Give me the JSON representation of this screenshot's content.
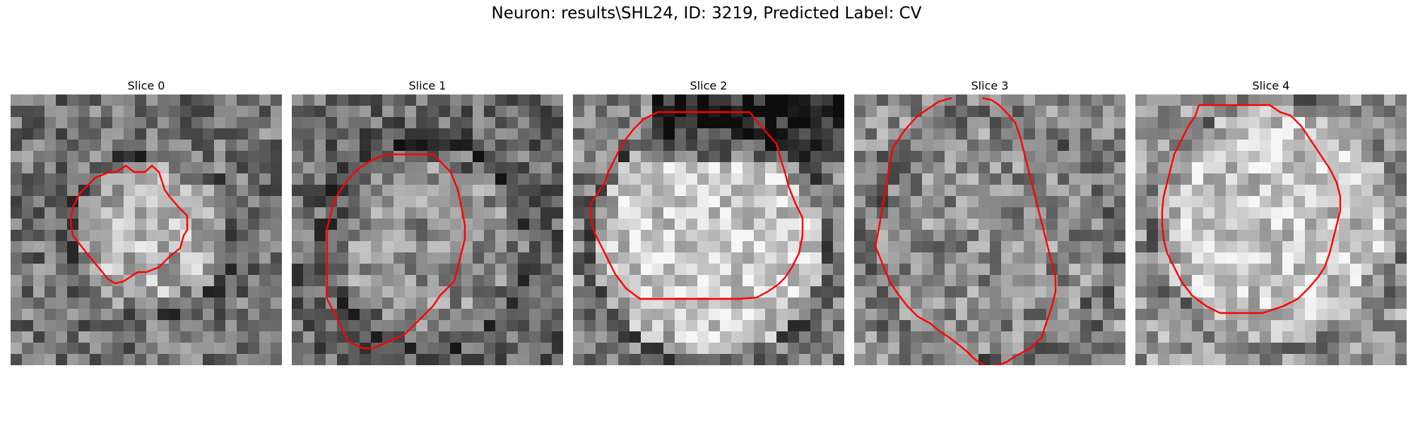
{
  "figure": {
    "title": "Neuron: results\\SHL24, ID: 3219, Predicted Label: CV"
  },
  "colors": {
    "contour": "#ff0000",
    "background": "#ffffff"
  },
  "panels": [
    {
      "title": "Slice 0"
    },
    {
      "title": "Slice 1"
    },
    {
      "title": "Slice 2"
    },
    {
      "title": "Slice 3"
    },
    {
      "title": "Slice 4"
    }
  ]
}
